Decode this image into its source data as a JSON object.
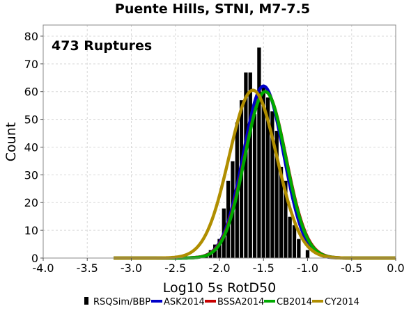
{
  "chart_data": {
    "type": "bar",
    "title": "Puente Hills, STNI, M7-7.5",
    "xlabel": "Log10 5s RotD50",
    "ylabel": "Count",
    "xlim": [
      -4.0,
      0.0
    ],
    "ylim": [
      0,
      84
    ],
    "x_ticks": [
      "-4.0",
      "-3.5",
      "-3.0",
      "-2.5",
      "-2.0",
      "-1.5",
      "-1.0",
      "-0.5",
      "0.0"
    ],
    "y_ticks": [
      "0",
      "10",
      "20",
      "30",
      "40",
      "50",
      "60",
      "70",
      "80"
    ],
    "grid": true,
    "annotation": "473 Ruptures",
    "legend_position": "bottom",
    "histogram": {
      "name": "RSQSim/BBP",
      "color": "#000000",
      "bin_width": 0.05,
      "bin_centers": [
        -2.3,
        -2.25,
        -2.2,
        -2.15,
        -2.1,
        -2.05,
        -2.0,
        -1.95,
        -1.9,
        -1.85,
        -1.8,
        -1.75,
        -1.7,
        -1.65,
        -1.6,
        -1.55,
        -1.5,
        -1.45,
        -1.4,
        -1.35,
        -1.3,
        -1.25,
        -1.2,
        -1.15,
        -1.1,
        -1.05,
        -1.0,
        -0.95
      ],
      "counts": [
        0,
        0,
        0,
        1,
        3,
        5,
        7,
        18,
        28,
        35,
        49,
        57,
        67,
        67,
        52,
        76,
        62,
        58,
        53,
        46,
        33,
        28,
        15,
        12,
        7,
        0,
        3,
        0
      ]
    },
    "series": [
      {
        "name": "ASK2014",
        "color": "#0000c8",
        "type": "normal",
        "mean": -1.5,
        "std": 0.228,
        "peak": 62
      },
      {
        "name": "BSSA2014",
        "color": "#c80000",
        "type": "normal",
        "mean": -1.48,
        "std": 0.235,
        "peak": 60
      },
      {
        "name": "CB2014",
        "color": "#00aa00",
        "type": "normal",
        "mean": -1.48,
        "std": 0.232,
        "peak": 60
      },
      {
        "name": "CY2014",
        "color": "#b08e00",
        "type": "normal",
        "mean": -1.62,
        "std": 0.27,
        "peak": 60.5
      }
    ]
  }
}
